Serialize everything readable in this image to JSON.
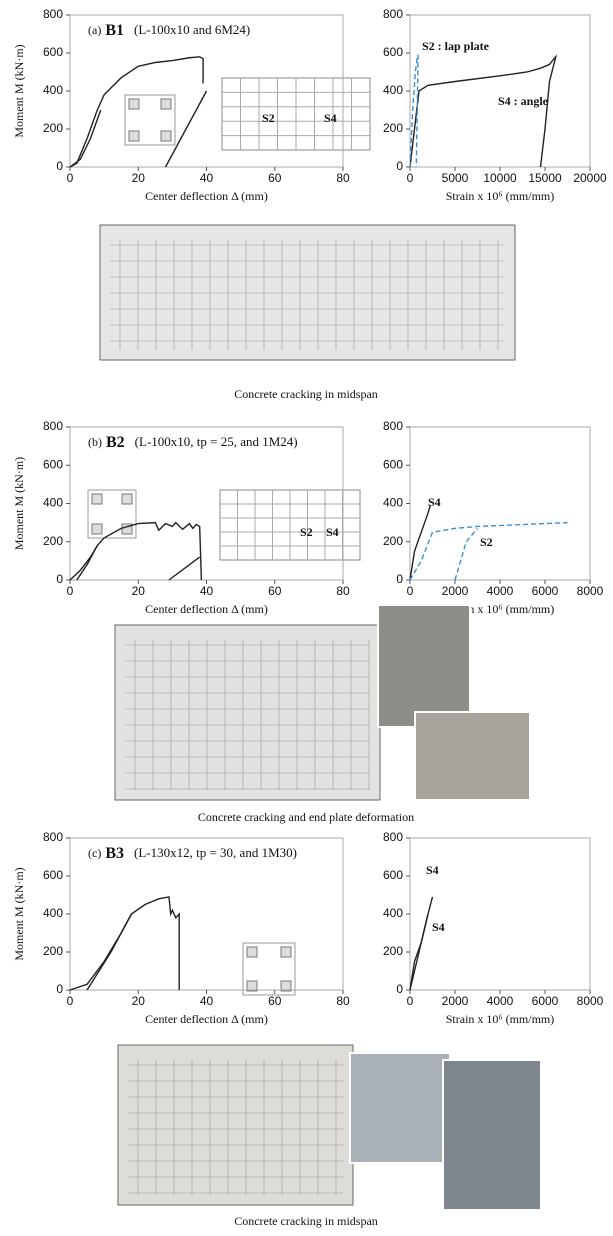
{
  "chart_data": [
    {
      "type": "line",
      "panel": "(a)",
      "specimen": "B1",
      "subtitle": "(L-100x10 and 6M24)",
      "xlabel": "Center deflection  Δ (mm)",
      "ylabel": "Moment M (kN·m)",
      "xlim": [
        0,
        80
      ],
      "xticks": [
        0,
        20,
        40,
        60,
        80
      ],
      "ylim": [
        0,
        800
      ],
      "yticks": [
        0,
        200,
        400,
        600,
        800
      ],
      "series": [
        {
          "color": "#222222",
          "x": [
            0,
            2,
            5,
            8,
            10,
            15,
            20,
            25,
            30,
            35,
            38,
            39,
            39
          ],
          "values": [
            0,
            20,
            150,
            300,
            380,
            470,
            530,
            550,
            560,
            575,
            580,
            570,
            440
          ]
        },
        {
          "color": "#222222",
          "x": [
            9,
            6,
            3,
            0
          ],
          "values": [
            300,
            150,
            40,
            0
          ]
        },
        {
          "color": "#222222",
          "x": [
            28,
            34,
            40
          ],
          "values": [
            0,
            200,
            400
          ]
        }
      ],
      "annotations": [
        "S2",
        "S4"
      ]
    },
    {
      "type": "line",
      "xlabel": "Strain x 10⁶ (mm/mm)",
      "xlim": [
        0,
        20000
      ],
      "xticks": [
        0,
        5000,
        10000,
        15000,
        20000
      ],
      "ylim": [
        0,
        800
      ],
      "yticks": [
        0,
        200,
        400,
        600,
        800
      ],
      "series": [
        {
          "color": "#222222",
          "x": [
            0,
            500,
            1000,
            2000,
            5000,
            10000,
            13000,
            14500,
            15500,
            16000,
            16200,
            15500,
            15000,
            14500
          ],
          "values": [
            0,
            200,
            400,
            430,
            450,
            480,
            500,
            520,
            540,
            570,
            580,
            450,
            200,
            0
          ]
        },
        {
          "color": "#3a8fd0",
          "dashed": true,
          "x": [
            0,
            300,
            600,
            800,
            900,
            700
          ],
          "values": [
            0,
            300,
            500,
            580,
            590,
            0
          ]
        }
      ],
      "annotations": [
        "S2 : lap plate",
        "S4 : angle"
      ]
    },
    {
      "type": "line",
      "panel": "(b)",
      "specimen": "B2",
      "subtitle": "(L-100x10, tp = 25, and 1M24)",
      "xlabel": "Center deflection  Δ (mm)",
      "ylabel": "Moment M (kN·m)",
      "xlim": [
        0,
        80
      ],
      "xticks": [
        0,
        20,
        40,
        60,
        80
      ],
      "ylim": [
        0,
        800
      ],
      "yticks": [
        0,
        200,
        400,
        600,
        800
      ],
      "series": [
        {
          "color": "#222222",
          "x": [
            0,
            3,
            6,
            8,
            10,
            15,
            20,
            25,
            26,
            28,
            30,
            31,
            33,
            35,
            36,
            37,
            38,
            38.5
          ],
          "values": [
            0,
            50,
            120,
            180,
            220,
            270,
            295,
            300,
            260,
            295,
            280,
            300,
            265,
            295,
            270,
            290,
            280,
            0
          ]
        },
        {
          "color": "#222222",
          "x": [
            8,
            5,
            2
          ],
          "values": [
            180,
            80,
            0
          ]
        },
        {
          "color": "#222222",
          "x": [
            29,
            38
          ],
          "values": [
            0,
            120
          ]
        }
      ],
      "annotations": [
        "S2",
        "S4"
      ]
    },
    {
      "type": "line",
      "xlabel": "Strain x 10⁶ (mm/mm)",
      "xlim": [
        0,
        8000
      ],
      "xticks": [
        0,
        2000,
        4000,
        6000,
        8000
      ],
      "ylim": [
        0,
        800
      ],
      "yticks": [
        0,
        200,
        400,
        600,
        800
      ],
      "series": [
        {
          "color": "#222222",
          "x": [
            0,
            200,
            500,
            800,
            900
          ],
          "values": [
            0,
            150,
            250,
            350,
            390
          ]
        },
        {
          "color": "#3a8fd0",
          "dashed": true,
          "x": [
            0,
            500,
            1000,
            2000,
            3000,
            5000,
            7000
          ],
          "values": [
            0,
            100,
            250,
            270,
            280,
            290,
            300
          ]
        },
        {
          "color": "#3a8fd0",
          "dashed": true,
          "x": [
            2000,
            2500,
            3000
          ],
          "values": [
            0,
            200,
            270
          ]
        }
      ],
      "annotations": [
        "S4",
        "S2"
      ]
    },
    {
      "type": "line",
      "panel": "(c)",
      "specimen": "B3",
      "subtitle": "(L-130x12, tp = 30, and 1M30)",
      "xlabel": "Center deflection  Δ (mm)",
      "ylabel": "Moment M (kN·m)",
      "xlim": [
        0,
        80
      ],
      "xticks": [
        0,
        20,
        40,
        60,
        80
      ],
      "ylim": [
        0,
        800
      ],
      "yticks": [
        0,
        200,
        400,
        600,
        800
      ],
      "series": [
        {
          "color": "#222222",
          "x": [
            0,
            5,
            10,
            15,
            18,
            22,
            26,
            29,
            29.5,
            30,
            31,
            32,
            32
          ],
          "values": [
            0,
            30,
            150,
            300,
            400,
            450,
            480,
            490,
            400,
            420,
            380,
            400,
            0
          ]
        },
        {
          "color": "#222222",
          "x": [
            18,
            12,
            5
          ],
          "values": [
            400,
            200,
            0
          ]
        }
      ],
      "annotations": []
    },
    {
      "type": "line",
      "xlabel": "Strain x 10⁶ (mm/mm)",
      "xlim": [
        0,
        8000
      ],
      "xticks": [
        0,
        2000,
        4000,
        6000,
        8000
      ],
      "ylim": [
        0,
        800
      ],
      "yticks": [
        0,
        200,
        400,
        600,
        800
      ],
      "series": [
        {
          "color": "#222222",
          "x": [
            0,
            200,
            500,
            800,
            1000
          ],
          "values": [
            0,
            150,
            250,
            400,
            490
          ]
        },
        {
          "color": "#222222",
          "x": [
            0,
            400,
            800
          ],
          "values": [
            0,
            200,
            400
          ]
        }
      ],
      "annotations": [
        "S4",
        "S4"
      ]
    }
  ],
  "captions": [
    "Concrete cracking in midspan",
    "Concrete cracking and end plate deformation",
    "Concrete cracking in midspan"
  ]
}
